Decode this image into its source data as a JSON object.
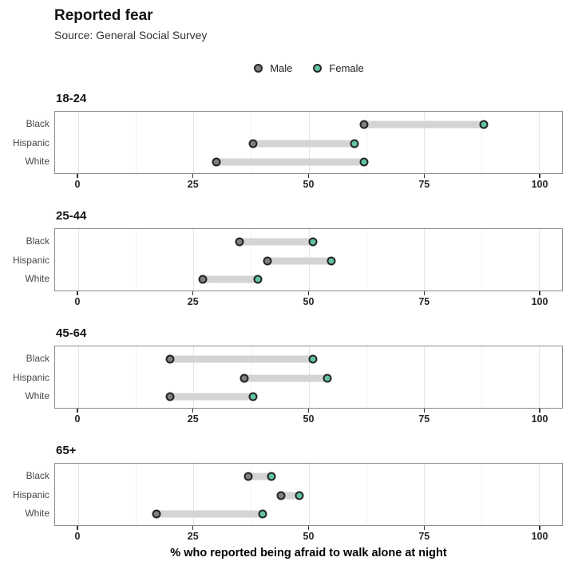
{
  "header": {
    "title": "Reported fear",
    "subtitle": "Source: General Social Survey"
  },
  "legend": [
    {
      "label": "Male",
      "color": "#7f7f7f"
    },
    {
      "label": "Female",
      "color": "#62C3A4"
    }
  ],
  "chart_data": {
    "type": "dumbbell",
    "title": "Reported fear",
    "subtitle": "Source: General Social Survey",
    "xlabel": "% who reported being afraid to walk alone at night",
    "ylabel": "",
    "xlim": [
      -5,
      105
    ],
    "x_ticks": [
      0,
      25,
      50,
      75,
      100
    ],
    "minor_ticks": [
      12.5,
      37.5,
      62.5,
      87.5
    ],
    "grid": true,
    "legend_position": "top-center",
    "categories": [
      "Black",
      "Hispanic",
      "White"
    ],
    "series_names": [
      "Male",
      "Female"
    ],
    "colors": {
      "male": "#7f7f7f",
      "female": "#62C3A4",
      "connector": "#d4d4d4"
    },
    "facets": [
      {
        "title": "18-24",
        "rows": [
          {
            "label": "Black",
            "male": 62,
            "female": 88
          },
          {
            "label": "Hispanic",
            "male": 38,
            "female": 60
          },
          {
            "label": "White",
            "male": 30,
            "female": 62
          }
        ]
      },
      {
        "title": "25-44",
        "rows": [
          {
            "label": "Black",
            "male": 35,
            "female": 51
          },
          {
            "label": "Hispanic",
            "male": 41,
            "female": 55
          },
          {
            "label": "White",
            "male": 27,
            "female": 39
          }
        ]
      },
      {
        "title": "45-64",
        "rows": [
          {
            "label": "Black",
            "male": 20,
            "female": 51
          },
          {
            "label": "Hispanic",
            "male": 36,
            "female": 54
          },
          {
            "label": "White",
            "male": 20,
            "female": 38
          }
        ]
      },
      {
        "title": "65+",
        "rows": [
          {
            "label": "Black",
            "male": 37,
            "female": 42
          },
          {
            "label": "Hispanic",
            "male": 44,
            "female": 48
          },
          {
            "label": "White",
            "male": 17,
            "female": 40
          }
        ]
      }
    ]
  }
}
